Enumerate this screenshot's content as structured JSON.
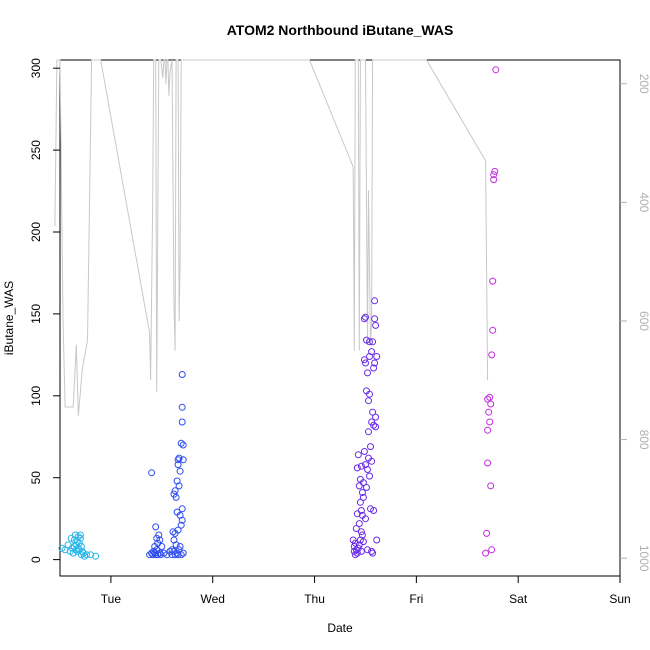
{
  "chart_data": {
    "type": "scatter",
    "title": "ATOM2 Northbound iButane_WAS",
    "xlabel": "Date",
    "ylabel": "iButane_WAS",
    "x_ticks": [
      "Tue",
      "Wed",
      "Thu",
      "Fri",
      "Sat",
      "Sun"
    ],
    "x_range": [
      0.5,
      6.0
    ],
    "ylim": [
      -10,
      305
    ],
    "y_ticks": [
      0,
      50,
      100,
      150,
      200,
      250,
      300
    ],
    "right_axis": {
      "ticks": [
        200,
        400,
        600,
        800,
        1000
      ],
      "range": [
        1030,
        160
      ],
      "color": "#b0b0b0"
    },
    "grid": false,
    "series": [
      {
        "color": "#29b6ea",
        "points": [
          [
            0.52,
            7
          ],
          [
            0.55,
            6
          ],
          [
            0.58,
            9
          ],
          [
            0.6,
            5
          ],
          [
            0.61,
            13
          ],
          [
            0.62,
            7
          ],
          [
            0.63,
            4
          ],
          [
            0.64,
            8
          ],
          [
            0.64,
            12
          ],
          [
            0.65,
            15
          ],
          [
            0.66,
            6
          ],
          [
            0.66,
            9
          ],
          [
            0.67,
            11
          ],
          [
            0.67,
            5
          ],
          [
            0.68,
            14
          ],
          [
            0.68,
            7
          ],
          [
            0.69,
            10
          ],
          [
            0.69,
            6
          ],
          [
            0.7,
            13
          ],
          [
            0.7,
            15
          ],
          [
            0.71,
            8
          ],
          [
            0.71,
            3
          ],
          [
            0.72,
            5
          ],
          [
            0.73,
            4
          ],
          [
            0.74,
            2
          ],
          [
            0.76,
            3
          ],
          [
            0.8,
            3
          ],
          [
            0.85,
            2
          ]
        ]
      },
      {
        "color": "#2e4cf0",
        "points": [
          [
            1.38,
            3
          ],
          [
            1.4,
            4
          ],
          [
            1.4,
            53
          ],
          [
            1.41,
            3
          ],
          [
            1.42,
            5
          ],
          [
            1.43,
            4
          ],
          [
            1.43,
            8
          ],
          [
            1.44,
            3
          ],
          [
            1.44,
            20
          ],
          [
            1.45,
            6
          ],
          [
            1.45,
            13
          ],
          [
            1.46,
            3
          ],
          [
            1.46,
            10
          ],
          [
            1.47,
            15
          ],
          [
            1.48,
            4
          ],
          [
            1.48,
            12
          ],
          [
            1.49,
            3
          ],
          [
            1.5,
            8
          ],
          [
            1.52,
            4
          ],
          [
            1.55,
            3
          ],
          [
            1.58,
            5
          ],
          [
            1.6,
            3
          ],
          [
            1.6,
            6
          ],
          [
            1.61,
            17
          ],
          [
            1.62,
            5
          ],
          [
            1.62,
            12
          ],
          [
            1.62,
            40
          ],
          [
            1.63,
            3
          ],
          [
            1.63,
            16
          ],
          [
            1.63,
            42
          ],
          [
            1.64,
            9
          ],
          [
            1.64,
            38
          ],
          [
            1.65,
            4
          ],
          [
            1.65,
            29
          ],
          [
            1.65,
            48
          ],
          [
            1.66,
            18
          ],
          [
            1.66,
            58
          ],
          [
            1.66,
            61
          ],
          [
            1.66,
            3
          ],
          [
            1.67,
            6
          ],
          [
            1.67,
            45
          ],
          [
            1.67,
            62
          ],
          [
            1.68,
            54
          ],
          [
            1.68,
            8
          ],
          [
            1.68,
            27
          ],
          [
            1.69,
            71
          ],
          [
            1.69,
            21
          ],
          [
            1.69,
            3
          ],
          [
            1.7,
            24
          ],
          [
            1.7,
            84
          ],
          [
            1.7,
            93
          ],
          [
            1.7,
            113
          ],
          [
            1.7,
            31
          ],
          [
            1.71,
            70
          ],
          [
            1.71,
            61
          ],
          [
            1.71,
            4
          ]
        ]
      },
      {
        "color": "#6a2ce8",
        "points": [
          [
            3.38,
            12
          ],
          [
            3.39,
            5
          ],
          [
            3.39,
            8
          ],
          [
            3.4,
            3
          ],
          [
            3.4,
            10
          ],
          [
            3.41,
            6
          ],
          [
            3.41,
            19
          ],
          [
            3.42,
            4
          ],
          [
            3.42,
            28
          ],
          [
            3.42,
            56
          ],
          [
            3.43,
            7
          ],
          [
            3.43,
            64
          ],
          [
            3.44,
            9
          ],
          [
            3.44,
            45
          ],
          [
            3.44,
            22
          ],
          [
            3.45,
            12
          ],
          [
            3.45,
            35
          ],
          [
            3.45,
            49
          ],
          [
            3.46,
            5
          ],
          [
            3.46,
            30
          ],
          [
            3.46,
            57
          ],
          [
            3.47,
            27
          ],
          [
            3.47,
            15
          ],
          [
            3.48,
            38
          ],
          [
            3.48,
            47
          ],
          [
            3.48,
            11
          ],
          [
            3.49,
            66
          ],
          [
            3.49,
            122
          ],
          [
            3.49,
            147
          ],
          [
            3.5,
            148
          ],
          [
            3.5,
            58
          ],
          [
            3.5,
            25
          ],
          [
            3.51,
            134
          ],
          [
            3.51,
            103
          ],
          [
            3.51,
            44
          ],
          [
            3.52,
            114
          ],
          [
            3.52,
            55
          ],
          [
            3.52,
            6
          ],
          [
            3.53,
            97
          ],
          [
            3.53,
            78
          ],
          [
            3.54,
            133
          ],
          [
            3.54,
            124
          ],
          [
            3.54,
            51
          ],
          [
            3.55,
            31
          ],
          [
            3.55,
            69
          ],
          [
            3.56,
            5
          ],
          [
            3.56,
            127
          ],
          [
            3.56,
            84
          ],
          [
            3.57,
            4
          ],
          [
            3.57,
            133
          ],
          [
            3.57,
            90
          ],
          [
            3.58,
            117
          ],
          [
            3.58,
            30
          ],
          [
            3.59,
            158
          ],
          [
            3.59,
            147
          ],
          [
            3.59,
            120
          ],
          [
            3.6,
            143
          ],
          [
            3.6,
            87
          ],
          [
            3.6,
            81
          ],
          [
            3.61,
            124
          ],
          [
            3.61,
            12
          ],
          [
            3.46,
            17
          ],
          [
            3.47,
            41
          ],
          [
            3.53,
            62
          ],
          [
            3.5,
            120
          ],
          [
            3.54,
            101
          ],
          [
            3.56,
            60
          ],
          [
            3.58,
            82
          ]
        ]
      },
      {
        "color": "#c42ee0",
        "points": [
          [
            4.68,
            4
          ],
          [
            4.69,
            16
          ],
          [
            4.7,
            59
          ],
          [
            4.7,
            79
          ],
          [
            4.71,
            90
          ],
          [
            4.72,
            99
          ],
          [
            4.72,
            84
          ],
          [
            4.73,
            95
          ],
          [
            4.73,
            45
          ],
          [
            4.74,
            6
          ],
          [
            4.74,
            125
          ],
          [
            4.75,
            140
          ],
          [
            4.75,
            170
          ],
          [
            4.76,
            232
          ],
          [
            4.76,
            235
          ],
          [
            4.77,
            237
          ],
          [
            4.78,
            299
          ],
          [
            4.7,
            98
          ]
        ]
      }
    ],
    "line_series": {
      "color": "#c8c8c8",
      "axis": "right",
      "points": [
        [
          0.45,
          440
        ],
        [
          0.47,
          160
        ],
        [
          0.5,
          160
        ],
        [
          0.53,
          605
        ],
        [
          0.55,
          745
        ],
        [
          0.6,
          745
        ],
        [
          0.63,
          745
        ],
        [
          0.66,
          640
        ],
        [
          0.68,
          760
        ],
        [
          0.72,
          680
        ],
        [
          0.77,
          633
        ],
        [
          0.81,
          160
        ],
        [
          0.9,
          160
        ],
        [
          1.38,
          620
        ],
        [
          1.39,
          700
        ],
        [
          1.41,
          400
        ],
        [
          1.42,
          160
        ],
        [
          1.44,
          160
        ],
        [
          1.45,
          720
        ],
        [
          1.47,
          160
        ],
        [
          1.49,
          160
        ],
        [
          1.51,
          190
        ],
        [
          1.52,
          160
        ],
        [
          1.53,
          160
        ],
        [
          1.54,
          200
        ],
        [
          1.55,
          160
        ],
        [
          1.56,
          160
        ],
        [
          1.57,
          220
        ],
        [
          1.58,
          180
        ],
        [
          1.6,
          160
        ],
        [
          1.62,
          570
        ],
        [
          1.63,
          650
        ],
        [
          1.64,
          160
        ],
        [
          1.65,
          160
        ],
        [
          1.66,
          160
        ],
        [
          1.67,
          600
        ],
        [
          1.68,
          500
        ],
        [
          1.69,
          160
        ],
        [
          1.7,
          160
        ],
        [
          1.71,
          160
        ],
        [
          1.72,
          160
        ],
        [
          2.95,
          160
        ],
        [
          3.38,
          340
        ],
        [
          3.39,
          650
        ],
        [
          3.4,
          160
        ],
        [
          3.41,
          160
        ],
        [
          3.42,
          160
        ],
        [
          3.43,
          160
        ],
        [
          3.44,
          650
        ],
        [
          3.45,
          160
        ],
        [
          3.46,
          160
        ],
        [
          3.47,
          160
        ],
        [
          3.49,
          160
        ],
        [
          3.5,
          160
        ],
        [
          3.52,
          640
        ],
        [
          3.53,
          380
        ],
        [
          3.55,
          640
        ],
        [
          3.56,
          600
        ],
        [
          3.57,
          160
        ],
        [
          3.58,
          160
        ],
        [
          3.59,
          160
        ],
        [
          3.6,
          160
        ],
        [
          3.62,
          160
        ],
        [
          4.1,
          160
        ],
        [
          4.68,
          330
        ],
        [
          4.7,
          700
        ]
      ]
    }
  }
}
